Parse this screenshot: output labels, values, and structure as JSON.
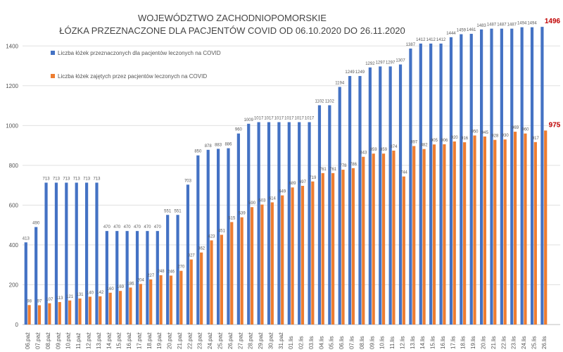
{
  "chart_data": {
    "type": "bar",
    "title": [
      "WOJEWÓDZTWO ZACHODNIOPOMORSKIE",
      "ŁÓZKA PRZEZNACZONE DLA PACJENTÓW COVID OD 06.10.2020 DO 26.11.2020"
    ],
    "xlabel": "",
    "ylabel": "",
    "ylim": [
      0,
      1500
    ],
    "yticks": [
      0,
      200,
      400,
      600,
      800,
      1000,
      1200,
      1400
    ],
    "grid": true,
    "legend_position": "top-left inside",
    "categories": [
      "06.paź",
      "07.paź",
      "08.paź",
      "09.paź",
      "10.paź",
      "11.paź",
      "12.paź",
      "13.paź",
      "14.paź",
      "15.paź",
      "16.paź",
      "17.paź",
      "18.paź",
      "19.paź",
      "20.paź",
      "21.paź",
      "22.paź",
      "23.paź",
      "24.paź",
      "25.paź",
      "26.paź",
      "27.paź",
      "28.paź",
      "29.paź",
      "30.paź",
      "31.paź",
      "01.lis",
      "02.lis",
      "03.lis",
      "04.lis",
      "05.lis",
      "06.lis",
      "07.lis",
      "08.lis",
      "09.lis",
      "10.lis",
      "11.lis",
      "12.lis",
      "13.lis",
      "14.lis",
      "15.lis",
      "16.lis",
      "17.lis",
      "18.lis",
      "19.lis",
      "20.lis",
      "21.lis",
      "22.lis",
      "23.lis",
      "24.lis",
      "25.lis",
      "26.lis"
    ],
    "series": [
      {
        "name": "Liczba łóżek przeznaczonych dla pacjentów leczonych na COVID",
        "color": "#4472C4",
        "values": [
          413,
          490,
          713,
          713,
          713,
          713,
          713,
          713,
          470,
          470,
          470,
          470,
          470,
          470,
          551,
          551,
          703,
          850,
          878,
          883,
          886,
          960,
          1009,
          1017,
          1017,
          1017,
          1017,
          1017,
          1017,
          1102,
          1102,
          1194,
          1249,
          1249,
          1292,
          1297,
          1297,
          1307,
          1387,
          1412,
          1412,
          1412,
          1444,
          1459,
          1461,
          1483,
          1487,
          1487,
          1487,
          1494,
          1494,
          1496
        ]
      },
      {
        "name": "Liczba łóżek zajętych przez pacjentów leczonych na COVID",
        "color": "#ED7D31",
        "values": [
          98,
          97,
          107,
          113,
          121,
          131,
          140,
          142,
          160,
          169,
          186,
          204,
          227,
          248,
          246,
          270,
          327,
          362,
          423,
          451,
          515,
          539,
          590,
          603,
          614,
          649,
          689,
          697,
          719,
          761,
          761,
          778,
          786,
          843,
          859,
          859,
          874,
          744,
          897,
          882,
          905,
          906,
          920,
          916,
          950,
          945,
          928,
          930,
          969,
          960,
          917,
          975
        ]
      }
    ],
    "last_label_color": "#C00000"
  }
}
